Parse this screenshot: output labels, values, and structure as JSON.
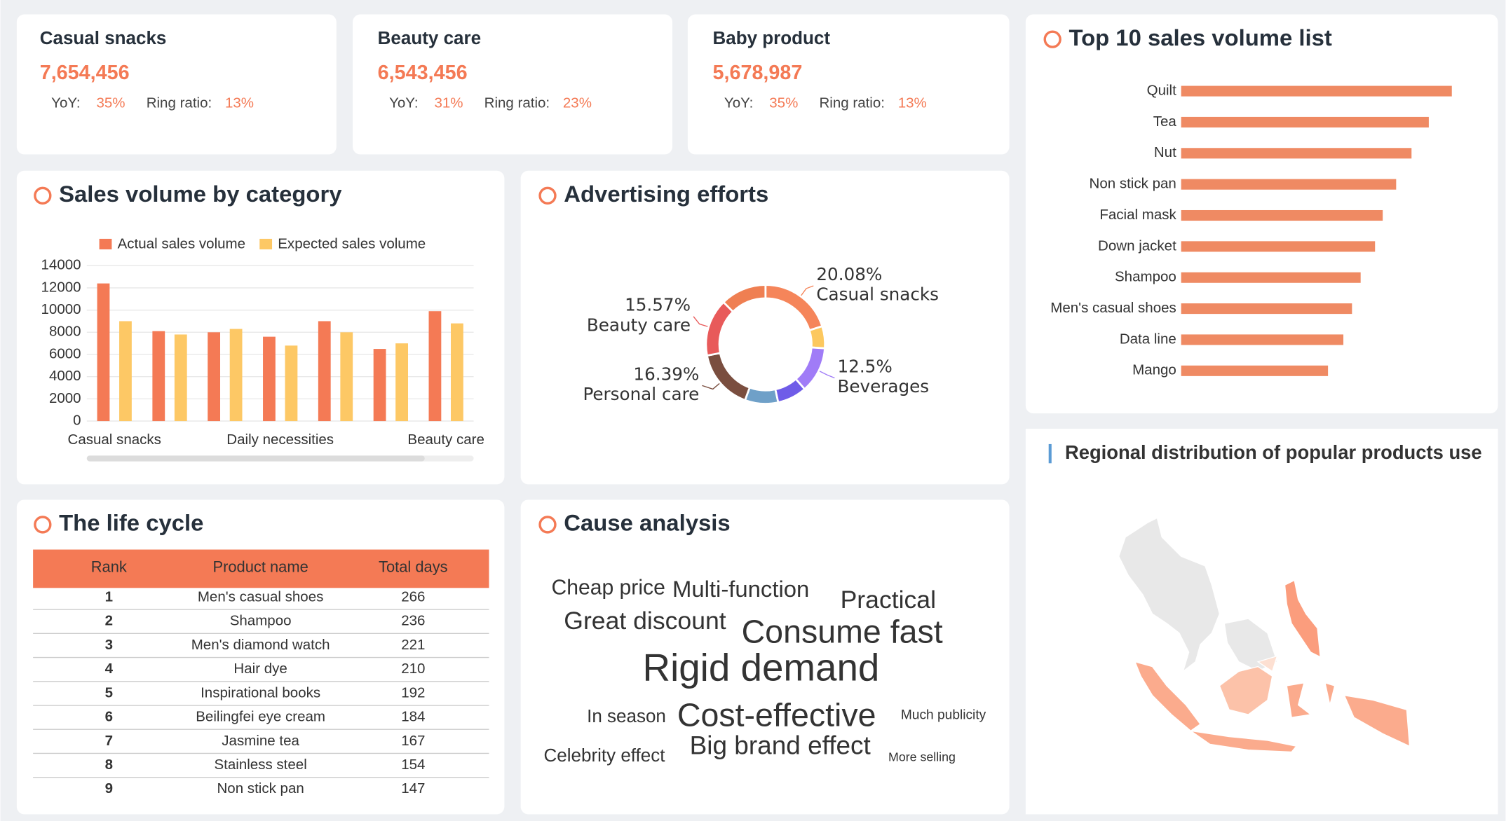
{
  "cards": [
    {
      "name": "Casual snacks",
      "value": "7,654,456",
      "yoy": "35%",
      "ring_ratio": "13%"
    },
    {
      "name": "Beauty care",
      "value": "6,543,456",
      "yoy": "31%",
      "ring_ratio": "23%"
    },
    {
      "name": "Baby product",
      "value": "5,678,987",
      "yoy": "35%",
      "ring_ratio": "13%"
    }
  ],
  "card_labels": {
    "yoy": "YoY:",
    "ring_ratio": "Ring ratio:"
  },
  "chart_data": [
    {
      "type": "bar",
      "title": "Sales volume by category",
      "categories": [
        "Casual snacks",
        null,
        null,
        "Daily necessities",
        null,
        null,
        "Beauty care"
      ],
      "series": [
        {
          "name": "Actual sales volume",
          "color": "#f47a55",
          "values": [
            12400,
            8100,
            8000,
            7600,
            9000,
            6500,
            9900
          ]
        },
        {
          "name": "Expected sales volume",
          "color": "#fdc865",
          "values": [
            9000,
            7800,
            8300,
            6800,
            8000,
            7000,
            8800
          ]
        }
      ],
      "ylim": [
        0,
        14000
      ],
      "yticks": [
        0,
        2000,
        4000,
        6000,
        8000,
        10000,
        12000,
        14000
      ],
      "grid": true
    },
    {
      "type": "pie",
      "title": "Advertising efforts",
      "categories": [
        "Casual snacks",
        null,
        "Beverages",
        null,
        null,
        "Personal care",
        "Beauty care",
        null
      ],
      "values": [
        20.08,
        6,
        12.5,
        8,
        9,
        16.39,
        15.57,
        12.46
      ],
      "value_labels": [
        "20.08%",
        null,
        "12.5%",
        null,
        null,
        "16.39%",
        "15.57%",
        null
      ],
      "colors": [
        "#f5855a",
        "#fcc85f",
        "#a07cf7",
        "#6f5ce8",
        "#6fa0c8",
        "#7a4e3f",
        "#e85a5a",
        "#ef7f52"
      ]
    },
    {
      "type": "barh",
      "title": "Top 10 sales volume list",
      "categories": [
        "Quilt",
        "Tea",
        "Nut",
        "Non stick pan",
        "Facial mask",
        "Down jacket",
        "Shampoo",
        "Men's casual shoes",
        "Data line",
        "Mango"
      ],
      "values": [
        282,
        258,
        240,
        224,
        210,
        202,
        187,
        178,
        169,
        153
      ],
      "xlim": [
        0,
        300
      ],
      "color": "#ef8a63"
    }
  ],
  "life_cycle": {
    "title": "The life cycle",
    "columns": [
      "Rank",
      "Product name",
      "Total days"
    ],
    "rows": [
      [
        1,
        "Men's casual shoes",
        266
      ],
      [
        2,
        "Shampoo",
        236
      ],
      [
        3,
        "Men's diamond watch",
        221
      ],
      [
        4,
        "Hair dye",
        210
      ],
      [
        5,
        "Inspirational books",
        192
      ],
      [
        6,
        "Beilingfei eye cream",
        184
      ],
      [
        7,
        "Jasmine tea",
        167
      ],
      [
        8,
        "Stainless steel",
        154
      ],
      [
        9,
        "Non stick pan",
        147
      ]
    ]
  },
  "cause_analysis": {
    "title": "Cause analysis",
    "words": [
      "Cheap price",
      "Multi-function",
      "Practical",
      "Great discount",
      "Consume fast",
      "Rigid demand",
      "In season",
      "Cost-effective",
      "Much publicity",
      "Celebrity effect",
      "Big brand effect",
      "More selling"
    ]
  },
  "map": {
    "title": "Regional distribution of popular products use"
  }
}
